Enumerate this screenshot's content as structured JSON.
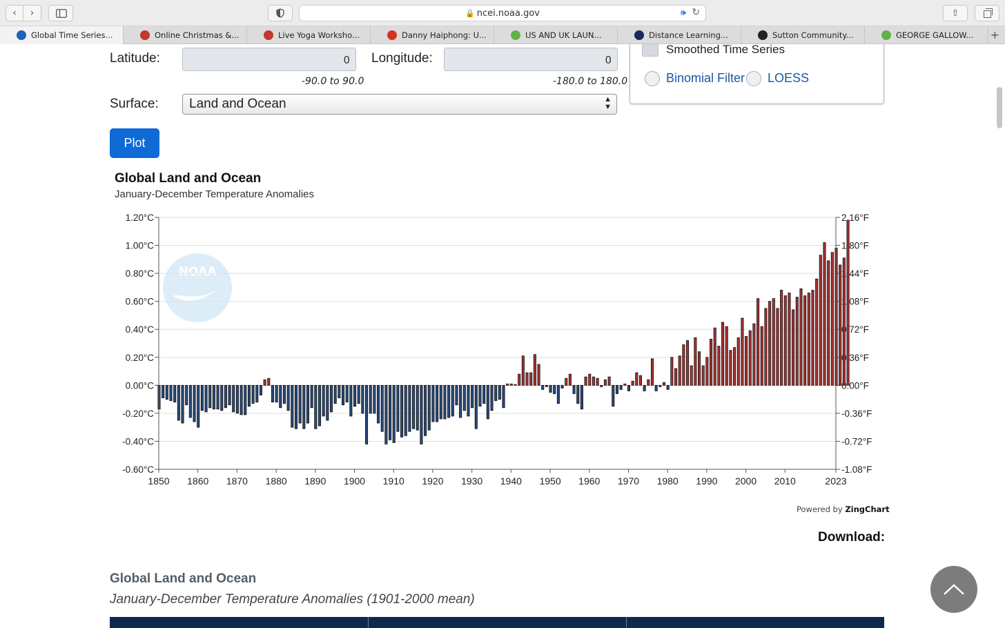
{
  "browser": {
    "url": "ncei.noaa.gov",
    "tabs": [
      {
        "title": "Global Time Series...",
        "active": true,
        "icon": "noaa-icon",
        "color": "#1f62b8"
      },
      {
        "title": "Online Christmas &...",
        "active": false,
        "icon": "om-icon",
        "color": "#c0392b"
      },
      {
        "title": "Live Yoga Worksho...",
        "active": false,
        "icon": "om-icon",
        "color": "#c0392b"
      },
      {
        "title": "Danny Haiphong: U...",
        "active": false,
        "icon": "gmail-icon",
        "color": "#d93025"
      },
      {
        "title": "US AND UK LAUN...",
        "active": false,
        "icon": "rumble-icon",
        "color": "#5fb346"
      },
      {
        "title": "Distance Learning...",
        "active": false,
        "icon": "shield-icon",
        "color": "#1c2a5a"
      },
      {
        "title": "Sutton Community...",
        "active": false,
        "icon": "community-icon",
        "color": "#222222"
      },
      {
        "title": "GEORGE GALLOW...",
        "active": false,
        "icon": "rumble-icon",
        "color": "#5fb346"
      }
    ]
  },
  "form": {
    "latitude_label": "Latitude:",
    "latitude_value": "0",
    "latitude_range": "-90.0 to 90.0",
    "longitude_label": "Longitude:",
    "longitude_value": "0",
    "longitude_range": "-180.0 to 180.0",
    "surface_label": "Surface:",
    "surface_value": "Land and Ocean",
    "plot_label": "Plot",
    "smoothed_label": "Smoothed Time Series",
    "binomial_label": "Binomial Filter",
    "loess_label": "LOESS"
  },
  "chart_data": {
    "type": "bar",
    "title": "Global Land and Ocean",
    "subtitle": "January-December Temperature Anomalies",
    "x_start": 1850,
    "x_end": 2023,
    "x_ticks": [
      "1850",
      "1860",
      "1870",
      "1880",
      "1890",
      "1900",
      "1910",
      "1920",
      "1930",
      "1940",
      "1950",
      "1960",
      "1970",
      "1980",
      "1990",
      "2000",
      "2010",
      "2023"
    ],
    "y_ticks_left": [
      "1.20°C",
      "1.00°C",
      "0.80°C",
      "0.60°C",
      "0.40°C",
      "0.20°C",
      "0.00°C",
      "-0.20°C",
      "-0.40°C",
      "-0.60°C"
    ],
    "y_ticks_right": [
      "2.16°F",
      "1.80°F",
      "1.44°F",
      "1.08°F",
      "0.72°F",
      "0.36°F",
      "0.00°F",
      "-0.36°F",
      "-0.72°F",
      "-1.08°F"
    ],
    "ylim": [
      -0.6,
      1.2
    ],
    "grid": true,
    "colors": {
      "positive": "#a83232",
      "negative": "#2a4a7a",
      "outline": "#111111"
    },
    "values": [
      -0.17,
      -0.09,
      -0.1,
      -0.11,
      -0.12,
      -0.25,
      -0.27,
      -0.14,
      -0.23,
      -0.26,
      -0.3,
      -0.18,
      -0.19,
      -0.16,
      -0.17,
      -0.17,
      -0.18,
      -0.16,
      -0.14,
      -0.19,
      -0.2,
      -0.21,
      -0.21,
      -0.15,
      -0.13,
      -0.12,
      -0.07,
      0.04,
      0.05,
      -0.12,
      -0.12,
      -0.16,
      -0.13,
      -0.18,
      -0.3,
      -0.31,
      -0.27,
      -0.31,
      -0.27,
      -0.16,
      -0.31,
      -0.29,
      -0.22,
      -0.25,
      -0.19,
      -0.13,
      -0.09,
      -0.14,
      -0.12,
      -0.22,
      -0.15,
      -0.13,
      -0.2,
      -0.42,
      -0.2,
      -0.2,
      -0.27,
      -0.33,
      -0.42,
      -0.39,
      -0.41,
      -0.33,
      -0.37,
      -0.36,
      -0.33,
      -0.31,
      -0.32,
      -0.42,
      -0.36,
      -0.32,
      -0.26,
      -0.26,
      -0.24,
      -0.24,
      -0.23,
      -0.22,
      -0.14,
      -0.23,
      -0.18,
      -0.22,
      -0.16,
      -0.31,
      -0.15,
      -0.13,
      -0.24,
      -0.18,
      -0.11,
      -0.1,
      -0.16,
      0.01,
      0.01,
      0.0,
      0.08,
      0.21,
      0.09,
      0.09,
      0.22,
      0.15,
      -0.03,
      -0.01,
      -0.05,
      -0.06,
      -0.13,
      -0.02,
      0.05,
      0.08,
      -0.06,
      -0.13,
      -0.17,
      0.06,
      0.08,
      0.06,
      0.05,
      -0.01,
      0.04,
      0.06,
      -0.15,
      -0.06,
      -0.03,
      0.01,
      -0.04,
      0.03,
      0.09,
      0.07,
      -0.04,
      0.04,
      0.19,
      -0.04,
      -0.01,
      0.02,
      -0.03,
      0.2,
      0.12,
      0.21,
      0.29,
      0.32,
      0.14,
      0.34,
      0.24,
      0.14,
      0.2,
      0.33,
      0.41,
      0.28,
      0.45,
      0.42,
      0.25,
      0.27,
      0.34,
      0.48,
      0.35,
      0.39,
      0.44,
      0.62,
      0.42,
      0.55,
      0.6,
      0.62,
      0.55,
      0.68,
      0.64,
      0.66,
      0.54,
      0.63,
      0.69,
      0.64,
      0.66,
      0.68,
      0.76,
      0.93,
      1.02,
      0.89,
      0.95,
      0.98,
      0.86,
      0.91,
      1.18
    ]
  },
  "footer": {
    "powered_prefix": "Powered by",
    "powered_brand": "ZingChart",
    "download_label": "Download:",
    "section_title": "Global Land and Ocean",
    "section_subtitle": "January-December Temperature Anomalies (1901-2000 mean)"
  },
  "watermark": "NOAA"
}
